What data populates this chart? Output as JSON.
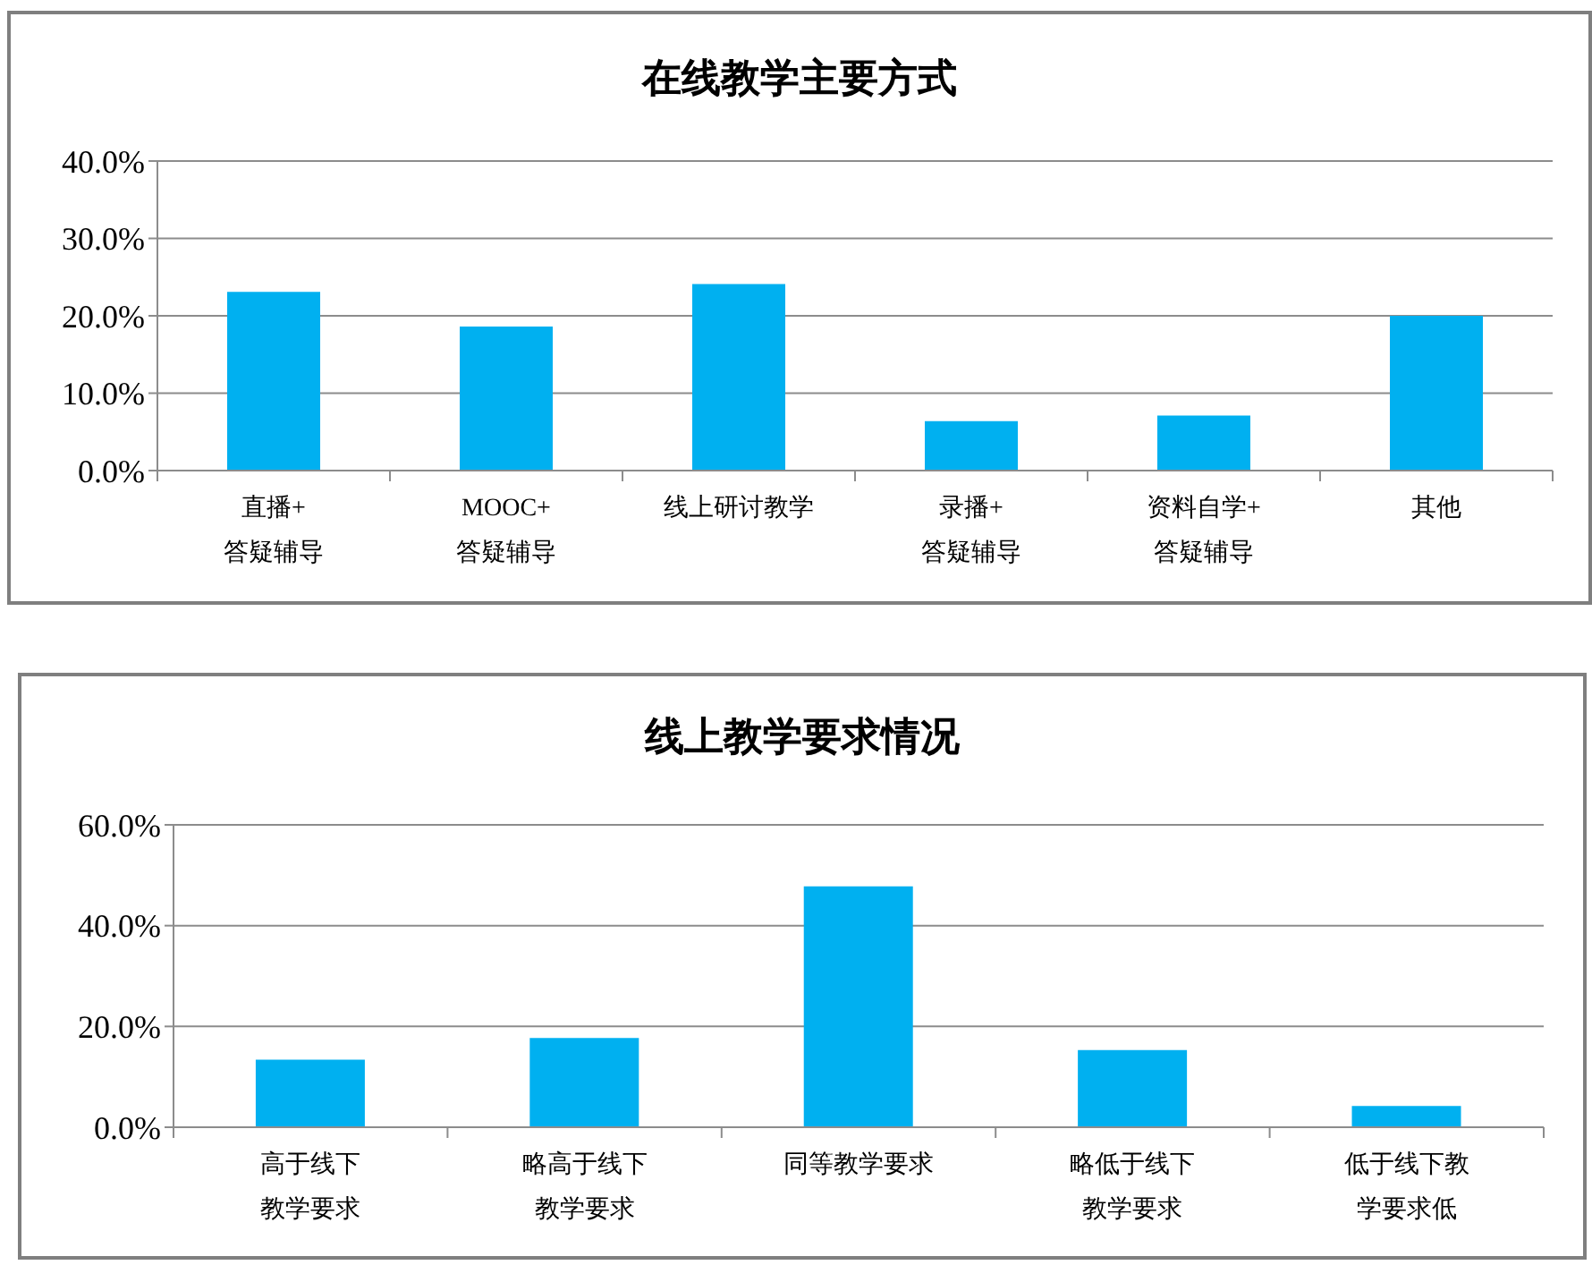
{
  "chart_data": [
    {
      "type": "bar",
      "title": "在线教学主要方式",
      "categories": [
        "直播+答疑辅导",
        "MOOC+答疑辅导",
        "线上研讨教学",
        "录播+答疑辅导",
        "资料自学+答疑辅导",
        "其他"
      ],
      "values": [
        23.1,
        18.6,
        24.1,
        6.4,
        7.1,
        20.0
      ],
      "color": "#00b0f0",
      "ylim": [
        0,
        40
      ],
      "yticks": [
        {
          "value": 0,
          "label": "0.0%"
        },
        {
          "value": 10,
          "label": "10.0%"
        },
        {
          "value": 20,
          "label": "20.0%"
        },
        {
          "value": 30,
          "label": "30.0%"
        },
        {
          "value": 40,
          "label": "40.0%"
        }
      ],
      "grid": "y"
    },
    {
      "type": "bar",
      "title": "线上教学要求情况",
      "categories": [
        "高于线下教学要求",
        "略高于线下教学要求",
        "同等教学要求",
        "略低于线下教学要求",
        "低于线下教学要求低"
      ],
      "values": [
        13.4,
        17.7,
        47.8,
        15.3,
        4.2
      ],
      "color": "#00b0f0",
      "ylim": [
        0,
        60
      ],
      "yticks": [
        {
          "value": 0,
          "label": "0.0%"
        },
        {
          "value": 20,
          "label": "20.0%"
        },
        {
          "value": 40,
          "label": "40.0%"
        },
        {
          "value": 60,
          "label": "60.0%"
        }
      ],
      "grid": "y"
    }
  ]
}
